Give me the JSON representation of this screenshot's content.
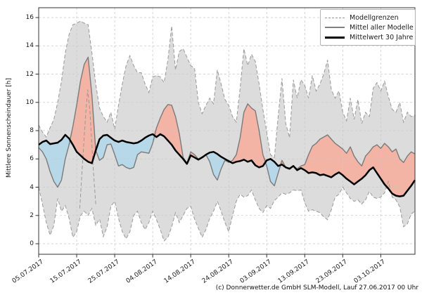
{
  "figure": {
    "y_axis_label": "Mittlere Sonnenscheindauer [h]",
    "caption": "(c) Donnerwetter.de GmbH SLM-Modell, Lauf 27.06.2017 00 Uhr",
    "colors": {
      "band_fill": "#dcdcdc",
      "boundary": "#999999",
      "model_mean": "#7a7a7a",
      "mean30": "#000000",
      "above_fill": "#f3b3a5",
      "below_fill": "#b7d8e9",
      "grid": "#c9c9c9",
      "spine": "#333333"
    },
    "legend": [
      {
        "id": "modellgrenzen",
        "label": "Modellgrenzen",
        "style": "s-dashed"
      },
      {
        "id": "mittel-aller-modelle",
        "label": "Mittel aller Modelle",
        "style": "s-gray"
      },
      {
        "id": "mittelwert-30-jahre",
        "label": "Mittelwert 30 Jahre",
        "style": "s-black"
      }
    ]
  },
  "chart_data": {
    "type": "line",
    "title": "",
    "xlabel": "",
    "ylabel": "Mittlere Sonnenscheindauer [h]",
    "legend_position": "upper right",
    "grid": true,
    "n_points": 100,
    "start_date": "05.07.2017",
    "end_date": "12.10.2017",
    "step_days": 1,
    "x_tick_days": [
      0,
      10,
      20,
      30,
      40,
      50,
      60,
      70,
      80,
      90
    ],
    "x_tick_labels": [
      "05.07.2017",
      "15.07.2017",
      "25.07.2017",
      "04.08.2017",
      "14.08.2017",
      "24.08.2017",
      "03.09.2017",
      "13.09.2017",
      "23.09.2017",
      "03.10.2017"
    ],
    "y_ticks": [
      0,
      2,
      4,
      6,
      8,
      10,
      12,
      14,
      16
    ],
    "ylim": [
      -0.75,
      16.7
    ],
    "series": [
      {
        "id": "upper",
        "name": "Modellgrenze oben",
        "style": "dashed",
        "values": [
          8.4,
          7.9,
          7.55,
          8.2,
          8.8,
          10.0,
          11.5,
          13.5,
          14.8,
          15.5,
          15.6,
          15.75,
          15.6,
          15.5,
          13.5,
          11.3,
          9.6,
          9.0,
          8.6,
          9.3,
          8.1,
          9.8,
          11.3,
          12.6,
          13.3,
          12.6,
          12.1,
          12.1,
          11.3,
          10.7,
          11.8,
          11.9,
          11.8,
          11.4,
          13.0,
          15.4,
          12.3,
          13.6,
          13.8,
          13.2,
          12.6,
          12.4,
          10.0,
          9.2,
          9.8,
          10.3,
          9.9,
          12.3,
          11.3,
          10.2,
          9.8,
          9.0,
          8.6,
          11.0,
          13.8,
          12.6,
          13.4,
          12.9,
          11.3,
          9.5,
          7.9,
          6.3,
          6.1,
          9.0,
          11.7,
          8.5,
          7.5,
          11.6,
          10.3,
          11.6,
          11.2,
          10.3,
          11.9,
          10.8,
          11.3,
          12.0,
          13.0,
          10.9,
          10.3,
          10.8,
          9.3,
          8.7,
          10.3,
          8.8,
          10.2,
          8.5,
          9.3,
          9.0,
          11.0,
          11.4,
          10.8,
          11.5,
          10.4,
          9.5,
          9.3,
          10.0,
          8.6,
          9.3,
          9.0,
          9.1
        ]
      },
      {
        "id": "lower",
        "name": "Modellgrenze unten",
        "style": "dashed",
        "values": [
          4.0,
          2.8,
          1.5,
          0.6,
          1.3,
          3.2,
          2.3,
          2.7,
          1.8,
          0.45,
          0.85,
          2.0,
          2.3,
          2.0,
          2.5,
          1.3,
          1.75,
          0.5,
          1.2,
          2.65,
          3.0,
          1.8,
          0.85,
          0.35,
          0.85,
          2.0,
          2.3,
          1.5,
          1.0,
          1.5,
          2.3,
          1.7,
          1.0,
          0.2,
          0.45,
          1.2,
          2.2,
          1.5,
          2.0,
          2.5,
          2.65,
          1.75,
          1.1,
          0.45,
          1.0,
          1.8,
          2.3,
          3.0,
          2.3,
          1.5,
          0.85,
          2.0,
          3.0,
          3.5,
          3.3,
          3.4,
          3.8,
          3.1,
          2.5,
          2.2,
          2.7,
          2.5,
          3.05,
          3.3,
          3.6,
          3.5,
          3.6,
          3.8,
          3.75,
          3.8,
          2.9,
          2.3,
          2.4,
          2.3,
          2.2,
          1.9,
          1.7,
          2.4,
          3.3,
          3.5,
          4.0,
          3.6,
          3.2,
          3.0,
          3.1,
          2.8,
          3.1,
          3.7,
          3.3,
          3.2,
          3.3,
          3.6,
          4.4,
          3.3,
          3.1,
          2.6,
          1.2,
          1.4,
          2.1,
          2.3
        ]
      },
      {
        "id": "model_mean",
        "name": "Mittel aller Modelle",
        "style": "solid-gray",
        "values": [
          6.8,
          6.5,
          6.0,
          5.1,
          4.4,
          4.0,
          4.5,
          6.0,
          7.0,
          8.3,
          9.8,
          11.5,
          12.7,
          13.2,
          10.5,
          6.6,
          5.9,
          6.1,
          7.0,
          7.05,
          6.3,
          5.5,
          5.6,
          5.4,
          5.3,
          5.4,
          6.3,
          6.5,
          6.45,
          6.4,
          7.1,
          8.2,
          8.9,
          9.5,
          9.85,
          9.8,
          9.0,
          7.8,
          6.1,
          5.7,
          6.5,
          6.3,
          6.0,
          6.15,
          6.3,
          5.8,
          4.9,
          4.5,
          5.3,
          5.9,
          5.75,
          5.9,
          6.3,
          7.5,
          9.3,
          9.9,
          9.6,
          9.4,
          8.0,
          6.3,
          5.5,
          4.4,
          4.1,
          5.0,
          5.9,
          5.4,
          5.35,
          5.5,
          5.3,
          5.5,
          5.6,
          6.3,
          6.9,
          7.1,
          7.4,
          7.55,
          7.7,
          7.4,
          7.1,
          6.9,
          6.7,
          6.4,
          6.85,
          6.2,
          5.8,
          5.5,
          6.2,
          6.5,
          6.85,
          7.0,
          6.75,
          7.1,
          6.85,
          6.5,
          6.7,
          6.0,
          5.75,
          6.2,
          6.5,
          6.35
        ]
      },
      {
        "id": "mean30",
        "name": "Mittelwert 30 Jahre",
        "style": "solid-black",
        "values": [
          7.0,
          7.2,
          7.3,
          7.05,
          7.1,
          7.15,
          7.35,
          7.7,
          7.45,
          7.0,
          6.5,
          6.25,
          6.0,
          5.8,
          5.7,
          6.6,
          7.4,
          7.65,
          7.7,
          7.5,
          7.3,
          7.2,
          7.3,
          7.2,
          7.15,
          7.1,
          7.15,
          7.3,
          7.5,
          7.65,
          7.75,
          7.55,
          7.75,
          7.6,
          7.3,
          7.0,
          6.6,
          6.3,
          6.0,
          5.65,
          6.25,
          6.1,
          5.95,
          6.1,
          6.3,
          6.45,
          6.5,
          6.35,
          6.15,
          6.0,
          5.85,
          5.7,
          5.8,
          5.85,
          5.95,
          5.8,
          5.9,
          5.55,
          5.4,
          5.5,
          5.9,
          6.0,
          5.8,
          5.5,
          5.6,
          5.4,
          5.3,
          5.5,
          5.2,
          5.35,
          5.2,
          5.0,
          5.05,
          5.0,
          4.85,
          4.9,
          4.8,
          4.7,
          4.9,
          5.05,
          4.85,
          4.6,
          4.4,
          4.2,
          4.4,
          4.6,
          4.85,
          5.2,
          5.4,
          5.0,
          4.6,
          4.2,
          3.9,
          3.55,
          3.4,
          3.35,
          3.4,
          3.75,
          4.1,
          4.5
        ]
      }
    ],
    "inner_dashed_segment": {
      "note": "short dashed model-boundary spike inside the red peak",
      "days": [
        10.8,
        11.6,
        12.4,
        12.9,
        13.5,
        14.3,
        15.0
      ],
      "values": [
        2.5,
        6.0,
        9.3,
        10.9,
        9.3,
        5.5,
        2.8
      ]
    }
  }
}
